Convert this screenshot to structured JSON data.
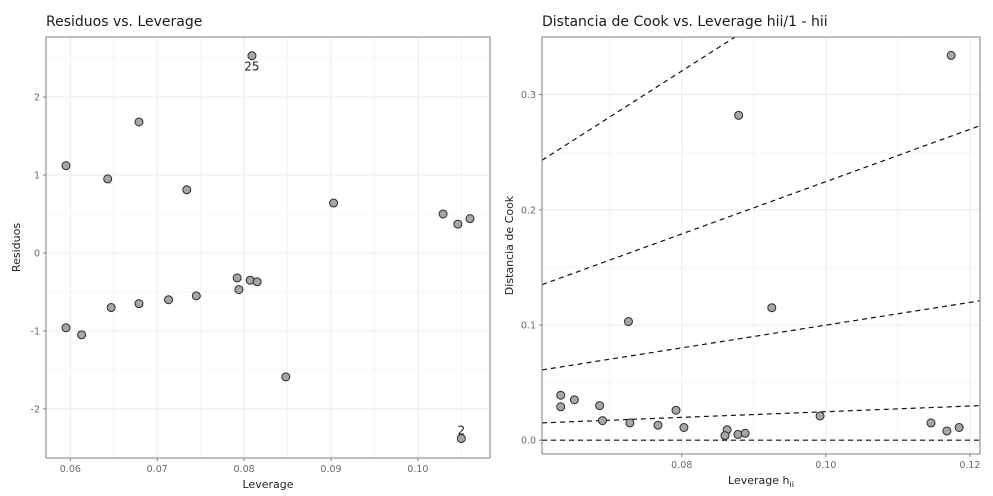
{
  "chart_data": [
    {
      "type": "scatter",
      "title": "Residuos  vs. Leverage",
      "xlabel": "Leverage",
      "ylabel": "Residuos",
      "xlim": [
        0.0572,
        0.1083
      ],
      "ylim": [
        -2.63,
        2.77
      ],
      "xticks": [
        0.06,
        0.07,
        0.08,
        0.09,
        0.1
      ],
      "xtick_labels": [
        "0.06",
        "0.07",
        "0.08",
        "0.09",
        "0.10"
      ],
      "yticks": [
        -2,
        -1,
        0,
        1,
        2
      ],
      "ytick_labels": [
        "-2",
        "-1",
        "0",
        "1",
        "2"
      ],
      "grid": true,
      "points": [
        {
          "x": 0.0595,
          "y": 1.12
        },
        {
          "x": 0.0595,
          "y": -0.96
        },
        {
          "x": 0.0613,
          "y": -1.05
        },
        {
          "x": 0.0643,
          "y": 0.95
        },
        {
          "x": 0.0647,
          "y": -0.7
        },
        {
          "x": 0.0679,
          "y": 1.68
        },
        {
          "x": 0.0679,
          "y": -0.65
        },
        {
          "x": 0.0713,
          "y": -0.6
        },
        {
          "x": 0.0734,
          "y": 0.81
        },
        {
          "x": 0.0745,
          "y": -0.55
        },
        {
          "x": 0.0792,
          "y": -0.32
        },
        {
          "x": 0.0794,
          "y": -0.47
        },
        {
          "x": 0.0807,
          "y": -0.35
        },
        {
          "x": 0.0815,
          "y": -0.37
        },
        {
          "x": 0.0809,
          "y": 2.53,
          "label": "25"
        },
        {
          "x": 0.0848,
          "y": -1.59
        },
        {
          "x": 0.0903,
          "y": 0.64
        },
        {
          "x": 0.1029,
          "y": 0.5
        },
        {
          "x": 0.1046,
          "y": 0.37
        },
        {
          "x": 0.106,
          "y": 0.44
        },
        {
          "x": 0.105,
          "y": -2.38,
          "label": "2"
        }
      ]
    },
    {
      "type": "scatter",
      "title": "Distancia de Cook vs. Leverage hii/1 - hii",
      "xlabel": "Leverage  h",
      "xlabel_subscript": "ii",
      "ylabel": "Distancia de Cook",
      "xlim": [
        0.0606,
        0.1214
      ],
      "ylim": [
        -0.012,
        0.35
      ],
      "xticks": [
        0.08,
        0.1,
        0.12
      ],
      "xtick_labels": [
        "0.08",
        "0.10",
        "0.12"
      ],
      "yticks": [
        0.0,
        0.1,
        0.2,
        0.3
      ],
      "ytick_labels": [
        "0.0",
        "0.1",
        "0.2",
        "0.3"
      ],
      "grid": true,
      "reference_lines": [
        {
          "x": [
            0.0606,
            0.1214
          ],
          "y": [
            0.0,
            0.0
          ]
        },
        {
          "x": [
            0.0606,
            0.1214
          ],
          "y": [
            0.015,
            0.03
          ]
        },
        {
          "x": [
            0.0606,
            0.1214
          ],
          "y": [
            0.061,
            0.121
          ]
        },
        {
          "x": [
            0.0606,
            0.1214
          ],
          "y": [
            0.135,
            0.273
          ]
        },
        {
          "x": [
            0.0606,
            0.0874
          ],
          "y": [
            0.243,
            0.35
          ]
        }
      ],
      "points": [
        {
          "x": 0.1174,
          "y": 0.334
        },
        {
          "x": 0.0879,
          "y": 0.282
        },
        {
          "x": 0.0925,
          "y": 0.115
        },
        {
          "x": 0.0726,
          "y": 0.103
        },
        {
          "x": 0.0632,
          "y": 0.039
        },
        {
          "x": 0.0632,
          "y": 0.029
        },
        {
          "x": 0.0651,
          "y": 0.035
        },
        {
          "x": 0.0686,
          "y": 0.03
        },
        {
          "x": 0.069,
          "y": 0.017
        },
        {
          "x": 0.0728,
          "y": 0.015
        },
        {
          "x": 0.0767,
          "y": 0.013
        },
        {
          "x": 0.0792,
          "y": 0.026
        },
        {
          "x": 0.0803,
          "y": 0.011
        },
        {
          "x": 0.0863,
          "y": 0.009
        },
        {
          "x": 0.086,
          "y": 0.004
        },
        {
          "x": 0.0878,
          "y": 0.005
        },
        {
          "x": 0.0888,
          "y": 0.006
        },
        {
          "x": 0.0992,
          "y": 0.021
        },
        {
          "x": 0.1146,
          "y": 0.015
        },
        {
          "x": 0.1168,
          "y": 0.008
        },
        {
          "x": 0.1185,
          "y": 0.011
        }
      ]
    }
  ]
}
